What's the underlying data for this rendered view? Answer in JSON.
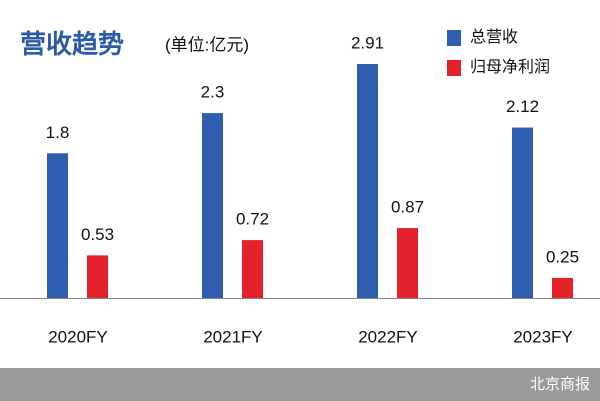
{
  "chart_data": {
    "type": "bar",
    "title": "营收趋势",
    "subtitle": "(单位:亿元)",
    "categories": [
      "2020FY",
      "2021FY",
      "2022FY",
      "2023FY"
    ],
    "series": [
      {
        "name": "总营收",
        "color": "#2f5db0",
        "values": [
          1.8,
          2.3,
          2.91,
          2.12
        ]
      },
      {
        "name": "归母净利润",
        "color": "#e3222b",
        "values": [
          0.53,
          0.72,
          0.87,
          0.25
        ]
      }
    ],
    "legend": "top-right",
    "source": "北京商报"
  }
}
